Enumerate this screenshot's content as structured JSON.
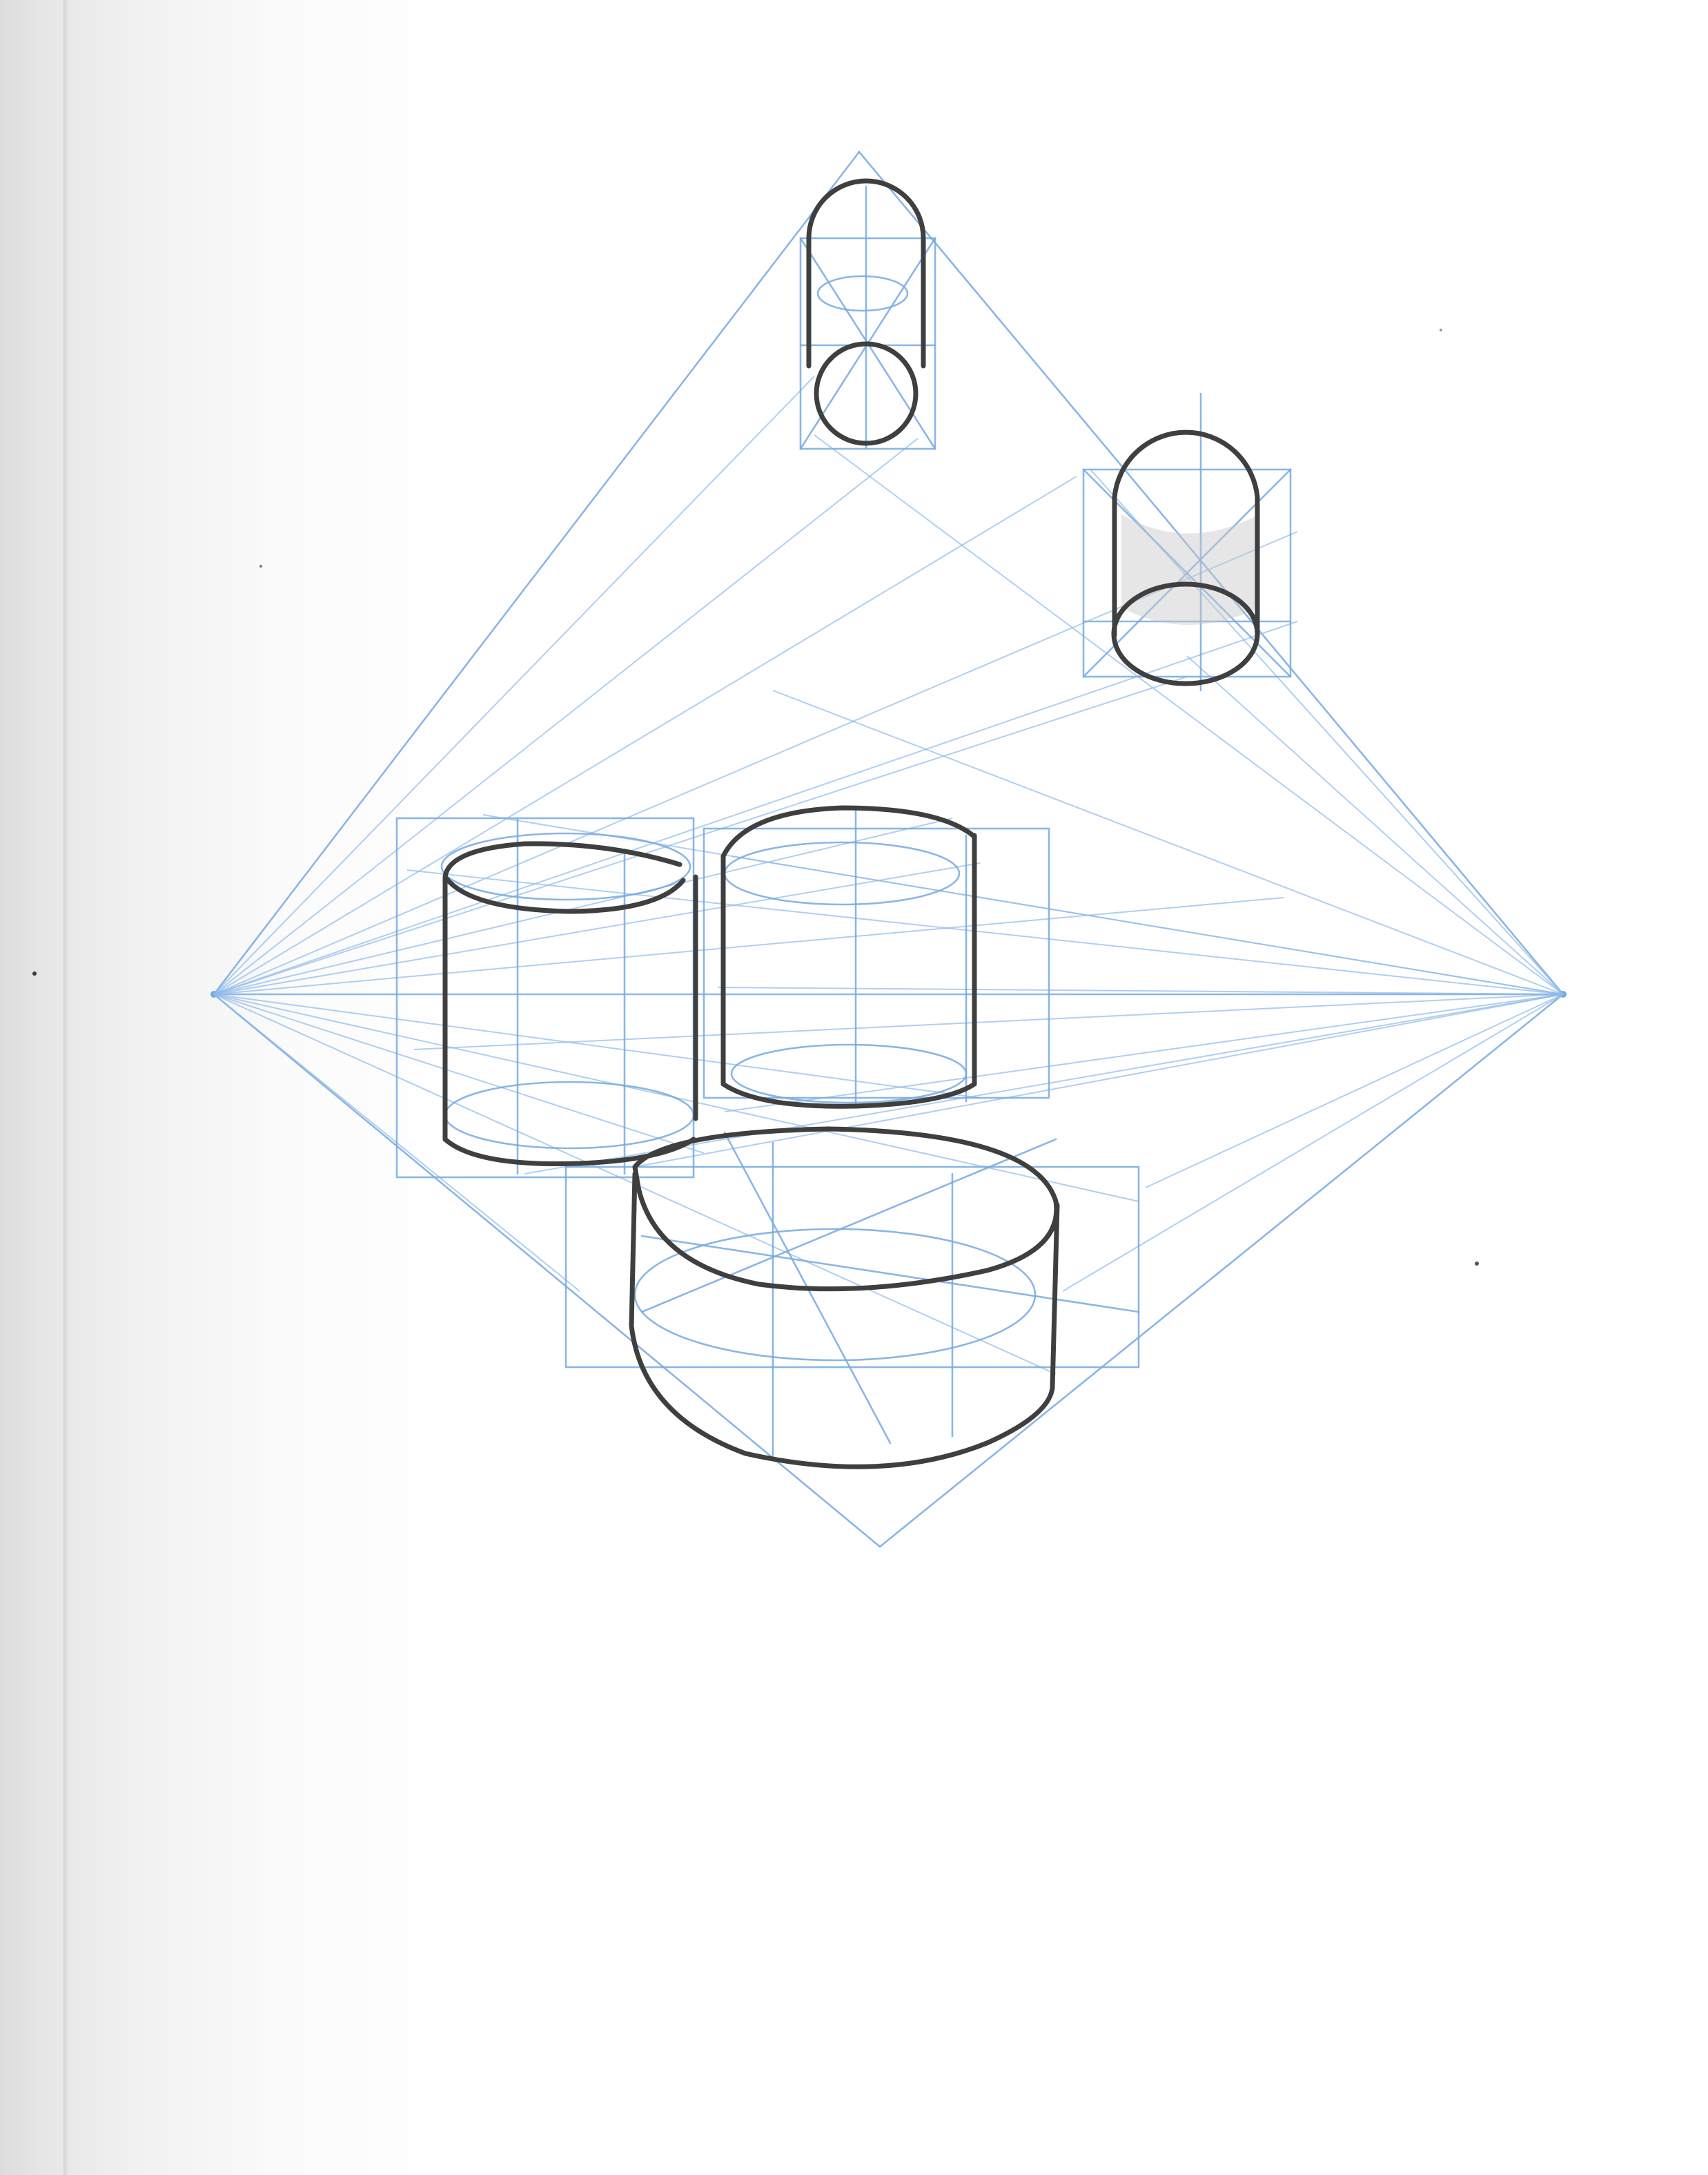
{
  "image": {
    "kind": "scanned sketchbook page",
    "colors": {
      "paper": "#ffffff",
      "construction_lines": "#76a9e2",
      "pencil_ink": "#3f3f3f",
      "page_shadow": "#dcdcdc"
    }
  }
}
